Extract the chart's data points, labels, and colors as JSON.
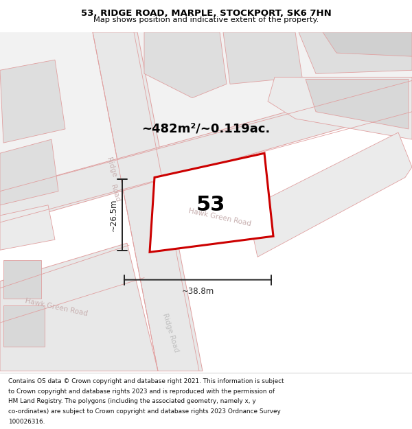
{
  "title": "53, RIDGE ROAD, MARPLE, STOCKPORT, SK6 7HN",
  "subtitle": "Map shows position and indicative extent of the property.",
  "footer_lines": [
    "Contains OS data © Crown copyright and database right 2021. This information is subject",
    "to Crown copyright and database rights 2023 and is reproduced with the permission of",
    "HM Land Registry. The polygons (including the associated geometry, namely x, y",
    "co-ordinates) are subject to Crown copyright and database rights 2023 Ordnance Survey",
    "100026316."
  ],
  "area_label": "~482m²/~0.119ac.",
  "number_label": "53",
  "width_label": "~38.8m",
  "height_label": "~26.5m",
  "map_bg": "#ffffff",
  "road_fill": "#e8e8e8",
  "road_stroke": "#e0a0a0",
  "building_fill": "#dedede",
  "plot_stroke": "#cc0000",
  "plot_fill": "#ffffff",
  "dim_color": "#222222",
  "road_label_color": "#c8b0b0",
  "ridge_label_color": "#c0c0c0"
}
